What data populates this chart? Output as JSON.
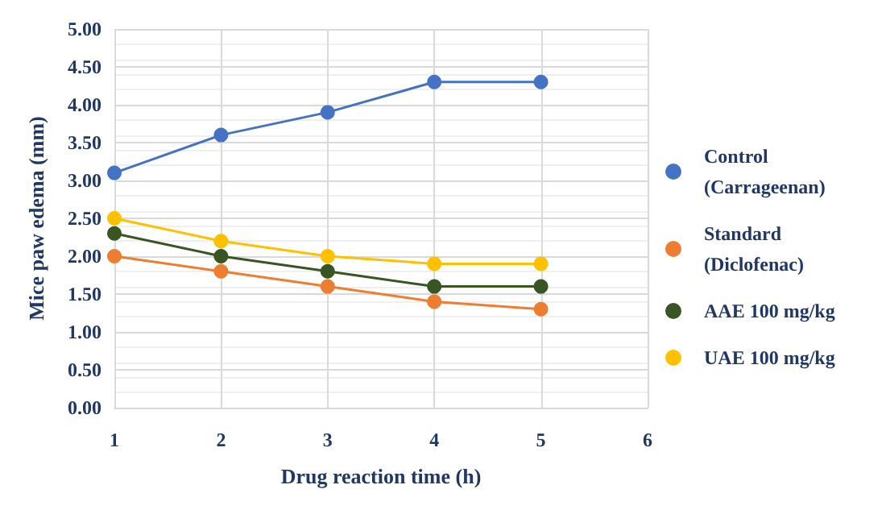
{
  "chart_data": {
    "type": "line",
    "xlabel": "Drug reaction time (h)",
    "ylabel": "Mice paw edema (mm)",
    "x": [
      1,
      2,
      3,
      4,
      5
    ],
    "series": [
      {
        "name": "Control (Carrageenan)",
        "color": "#4472c4",
        "values": [
          3.1,
          3.6,
          3.9,
          4.3,
          4.3
        ]
      },
      {
        "name": "Standard (Diclofenac)",
        "color": "#ed7d31",
        "values": [
          2.0,
          1.8,
          1.6,
          1.4,
          1.3
        ]
      },
      {
        "name": "AAE 100 mg/kg",
        "color": "#375623",
        "values": [
          2.3,
          2.0,
          1.8,
          1.6,
          1.6
        ]
      },
      {
        "name": "UAE 100 mg/kg",
        "color": "#ffc000",
        "values": [
          2.5,
          2.2,
          2.0,
          1.9,
          1.9
        ]
      }
    ],
    "xlim": [
      1,
      6
    ],
    "xticks": [
      1,
      2,
      3,
      4,
      5,
      6
    ],
    "ylim": [
      0,
      5
    ],
    "yticks": [
      {
        "value": 0,
        "label": "0.00"
      },
      {
        "value": 0.5,
        "label": "0.50"
      },
      {
        "value": 1,
        "label": "1.00"
      },
      {
        "value": 1.5,
        "label": "1.50"
      },
      {
        "value": 2,
        "label": "2.00"
      },
      {
        "value": 2.5,
        "label": "2.50"
      },
      {
        "value": 3,
        "label": "3.00"
      },
      {
        "value": 3.5,
        "label": "3.50"
      },
      {
        "value": 4,
        "label": "4.00"
      },
      {
        "value": 4.5,
        "label": "4.50"
      },
      {
        "value": 5,
        "label": "5.00"
      }
    ],
    "grid": true,
    "legend": "right",
    "marker": "circle",
    "line_style": "solid"
  }
}
